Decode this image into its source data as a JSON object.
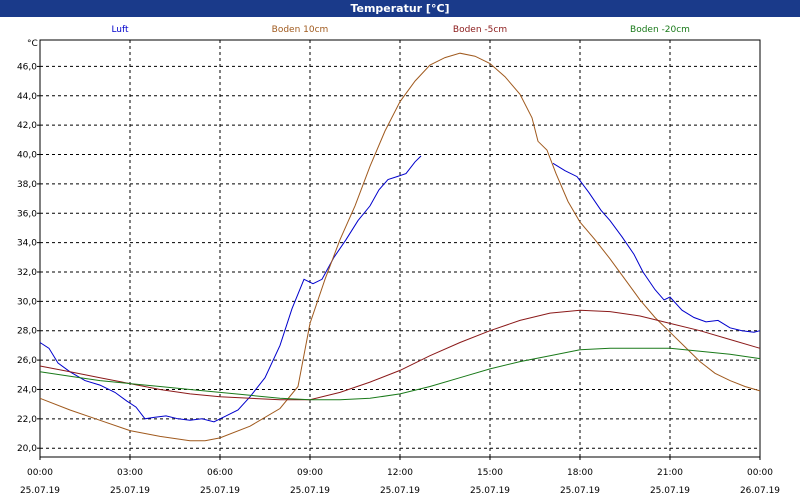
{
  "title": "Temperatur [°C]",
  "chart_data": {
    "type": "line",
    "title": "Temperatur [°C]",
    "ylabel": "°C",
    "ylim": [
      19.4,
      47.8
    ],
    "xlim": [
      0,
      24
    ],
    "yticks": [
      "20,0",
      "22,0",
      "24,0",
      "26,0",
      "28,0",
      "30,0",
      "32,0",
      "34,0",
      "36,0",
      "38,0",
      "40,0",
      "42,0",
      "44,0",
      "46,0"
    ],
    "ytick_values": [
      20,
      22,
      24,
      26,
      28,
      30,
      32,
      34,
      36,
      38,
      40,
      42,
      44,
      46
    ],
    "xticks": [
      {
        "time": "00:00",
        "date": "25.07.19",
        "hour": 0
      },
      {
        "time": "03:00",
        "date": "25.07.19",
        "hour": 3
      },
      {
        "time": "06:00",
        "date": "25.07.19",
        "hour": 6
      },
      {
        "time": "09:00",
        "date": "25.07.19",
        "hour": 9
      },
      {
        "time": "12:00",
        "date": "25.07.19",
        "hour": 12
      },
      {
        "time": "15:00",
        "date": "25.07.19",
        "hour": 15
      },
      {
        "time": "18:00",
        "date": "25.07.19",
        "hour": 18
      },
      {
        "time": "21:00",
        "date": "25.07.19",
        "hour": 21
      },
      {
        "time": "00:00",
        "date": "26.07.19",
        "hour": 24
      }
    ],
    "grid": true,
    "legend_position": "top",
    "series": [
      {
        "name": "Luft",
        "color": "#0000cc",
        "segments": [
          [
            [
              0,
              27.2
            ],
            [
              0.3,
              26.8
            ],
            [
              0.6,
              25.8
            ],
            [
              1,
              25.2
            ],
            [
              1.5,
              24.6
            ],
            [
              2,
              24.3
            ],
            [
              2.5,
              23.8
            ],
            [
              2.9,
              23.2
            ],
            [
              3.2,
              22.8
            ],
            [
              3.5,
              22.0
            ],
            [
              3.8,
              22.1
            ],
            [
              4.2,
              22.2
            ],
            [
              4.6,
              22.0
            ],
            [
              5.0,
              21.9
            ],
            [
              5.4,
              22.0
            ],
            [
              5.8,
              21.8
            ],
            [
              6.2,
              22.2
            ],
            [
              6.6,
              22.6
            ],
            [
              7.0,
              23.5
            ],
            [
              7.5,
              24.8
            ],
            [
              8.0,
              27.0
            ],
            [
              8.4,
              29.5
            ],
            [
              8.8,
              31.5
            ],
            [
              9.1,
              31.2
            ],
            [
              9.4,
              31.5
            ],
            [
              9.8,
              33.0
            ],
            [
              10.2,
              34.2
            ],
            [
              10.6,
              35.5
            ],
            [
              11.0,
              36.5
            ],
            [
              11.3,
              37.6
            ],
            [
              11.6,
              38.3
            ],
            [
              11.9,
              38.5
            ],
            [
              12.2,
              38.7
            ],
            [
              12.5,
              39.5
            ],
            [
              12.7,
              39.9
            ]
          ],
          [
            [
              17.1,
              39.4
            ],
            [
              17.5,
              38.9
            ],
            [
              17.9,
              38.5
            ],
            [
              18.3,
              37.4
            ],
            [
              18.7,
              36.2
            ],
            [
              19.0,
              35.5
            ],
            [
              19.4,
              34.4
            ],
            [
              19.8,
              33.2
            ],
            [
              20.1,
              32.0
            ],
            [
              20.5,
              30.8
            ],
            [
              20.8,
              30.1
            ],
            [
              21.0,
              30.3
            ],
            [
              21.4,
              29.4
            ],
            [
              21.8,
              28.9
            ],
            [
              22.2,
              28.6
            ],
            [
              22.6,
              28.7
            ],
            [
              23.0,
              28.2
            ],
            [
              23.4,
              28.0
            ],
            [
              23.8,
              27.9
            ],
            [
              24.0,
              28.0
            ]
          ]
        ]
      },
      {
        "name": "Boden 10cm",
        "color": "#a05a1e",
        "segments": [
          [
            [
              0,
              23.4
            ],
            [
              1,
              22.6
            ],
            [
              2,
              21.9
            ],
            [
              3,
              21.2
            ],
            [
              4,
              20.8
            ],
            [
              5,
              20.5
            ],
            [
              5.5,
              20.5
            ],
            [
              6,
              20.7
            ],
            [
              7,
              21.5
            ],
            [
              8,
              22.7
            ],
            [
              8.6,
              24.2
            ],
            [
              9.0,
              28.5
            ],
            [
              9.5,
              31.5
            ],
            [
              10,
              34.2
            ],
            [
              10.5,
              36.5
            ],
            [
              11,
              39.2
            ],
            [
              11.5,
              41.6
            ],
            [
              12,
              43.6
            ],
            [
              12.5,
              45.0
            ],
            [
              13,
              46.1
            ],
            [
              13.5,
              46.6
            ],
            [
              14,
              46.9
            ],
            [
              14.5,
              46.7
            ],
            [
              15,
              46.2
            ],
            [
              15.5,
              45.3
            ],
            [
              16,
              44.1
            ],
            [
              16.4,
              42.5
            ],
            [
              16.6,
              40.9
            ],
            [
              16.9,
              40.3
            ],
            [
              17.2,
              38.7
            ],
            [
              17.6,
              36.8
            ],
            [
              18,
              35.4
            ],
            [
              18.5,
              34.2
            ],
            [
              19,
              32.9
            ],
            [
              19.5,
              31.5
            ],
            [
              20,
              30.1
            ],
            [
              20.5,
              28.9
            ],
            [
              21,
              27.9
            ],
            [
              21.5,
              26.9
            ],
            [
              22,
              25.9
            ],
            [
              22.5,
              25.1
            ],
            [
              23,
              24.6
            ],
            [
              23.5,
              24.2
            ],
            [
              24,
              23.9
            ]
          ]
        ]
      },
      {
        "name": "Boden -5cm",
        "color": "#8b1a1a",
        "segments": [
          [
            [
              0,
              25.6
            ],
            [
              1,
              25.2
            ],
            [
              2,
              24.8
            ],
            [
              3,
              24.4
            ],
            [
              4,
              24.0
            ],
            [
              5,
              23.7
            ],
            [
              6,
              23.5
            ],
            [
              7,
              23.4
            ],
            [
              8,
              23.3
            ],
            [
              9,
              23.3
            ],
            [
              10,
              23.8
            ],
            [
              11,
              24.5
            ],
            [
              12,
              25.3
            ],
            [
              13,
              26.3
            ],
            [
              14,
              27.2
            ],
            [
              15,
              28.0
            ],
            [
              16,
              28.7
            ],
            [
              17,
              29.2
            ],
            [
              18,
              29.4
            ],
            [
              19,
              29.3
            ],
            [
              20,
              29.0
            ],
            [
              21,
              28.5
            ],
            [
              22,
              28.0
            ],
            [
              23,
              27.4
            ],
            [
              24,
              26.8
            ]
          ]
        ]
      },
      {
        "name": "Boden -20cm",
        "color": "#1a7a1a",
        "segments": [
          [
            [
              0,
              25.2
            ],
            [
              1,
              24.9
            ],
            [
              2,
              24.6
            ],
            [
              3,
              24.4
            ],
            [
              4,
              24.2
            ],
            [
              5,
              24.0
            ],
            [
              6,
              23.8
            ],
            [
              7,
              23.6
            ],
            [
              8,
              23.4
            ],
            [
              9,
              23.3
            ],
            [
              10,
              23.3
            ],
            [
              11,
              23.4
            ],
            [
              12,
              23.7
            ],
            [
              13,
              24.2
            ],
            [
              14,
              24.8
            ],
            [
              15,
              25.4
            ],
            [
              16,
              25.9
            ],
            [
              17,
              26.3
            ],
            [
              18,
              26.7
            ],
            [
              19,
              26.8
            ],
            [
              20,
              26.8
            ],
            [
              21,
              26.8
            ],
            [
              22,
              26.6
            ],
            [
              23,
              26.4
            ],
            [
              24,
              26.1
            ]
          ]
        ]
      }
    ]
  }
}
